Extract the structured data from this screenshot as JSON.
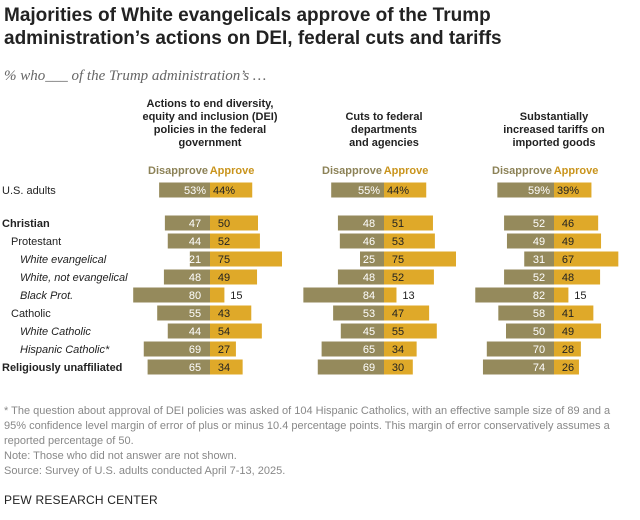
{
  "title": "Majorities of White evangelicals approve of the Trump administration’s actions on DEI, federal cuts and tariffs",
  "subtitle": "% who___ of the Trump administration’s …",
  "colors": {
    "disapprove": "#958a5c",
    "approve": "#dfa929",
    "disapprove_text": "#8c8257",
    "approve_text": "#c9941c"
  },
  "chart_data": {
    "type": "bar",
    "orientation": "horizontal-diverging",
    "categories": [
      "U.S. adults",
      "Christian",
      "Protestant",
      "White evangelical",
      "White, not evangelical",
      "Black Prot.",
      "Catholic",
      "White Catholic",
      "Hispanic Catholic*",
      "Religiously unaffiliated"
    ],
    "category_styles": [
      "normal",
      "bold",
      "normal",
      "italic",
      "italic",
      "italic",
      "normal",
      "italic",
      "italic",
      "bold"
    ],
    "category_indent": [
      0,
      0,
      1,
      2,
      2,
      2,
      1,
      2,
      2,
      0
    ],
    "legend": [
      "Disapprove",
      "Approve"
    ],
    "panels": [
      {
        "title": [
          "Actions to end diversity,",
          "equity and inclusion (DEI)",
          "policies in the federal",
          "government"
        ],
        "series": [
          {
            "name": "Disapprove",
            "values": [
              53,
              47,
              44,
              21,
              48,
              80,
              55,
              44,
              69,
              65
            ]
          },
          {
            "name": "Approve",
            "values": [
              44,
              50,
              52,
              75,
              49,
              15,
              43,
              54,
              27,
              34
            ]
          }
        ]
      },
      {
        "title": [
          "Cuts to federal",
          "departments",
          "and agencies"
        ],
        "series": [
          {
            "name": "Disapprove",
            "values": [
              55,
              48,
              46,
              25,
              48,
              84,
              53,
              45,
              65,
              69
            ]
          },
          {
            "name": "Approve",
            "values": [
              44,
              51,
              53,
              75,
              52,
              13,
              47,
              55,
              34,
              30
            ]
          }
        ]
      },
      {
        "title": [
          "Substantially",
          "increased tariffs on",
          "imported goods"
        ],
        "series": [
          {
            "name": "Disapprove",
            "values": [
              59,
              52,
              49,
              31,
              52,
              82,
              58,
              50,
              70,
              74
            ]
          },
          {
            "name": "Approve",
            "values": [
              39,
              46,
              49,
              67,
              48,
              15,
              41,
              49,
              28,
              26
            ]
          }
        ]
      }
    ]
  },
  "notes": [
    "* The question about approval of DEI policies was asked of 104 Hispanic Catholics, with an effective sample size of 89 and a 95% confidence level margin of error of plus or minus 10.4 percentage points. This margin of error conservatively assumes a reported percentage of 50.",
    "Note: Those who did not answer are not shown.",
    "Source: Survey of U.S. adults conducted April 7-13, 2025."
  ],
  "footer": "PEW RESEARCH CENTER"
}
